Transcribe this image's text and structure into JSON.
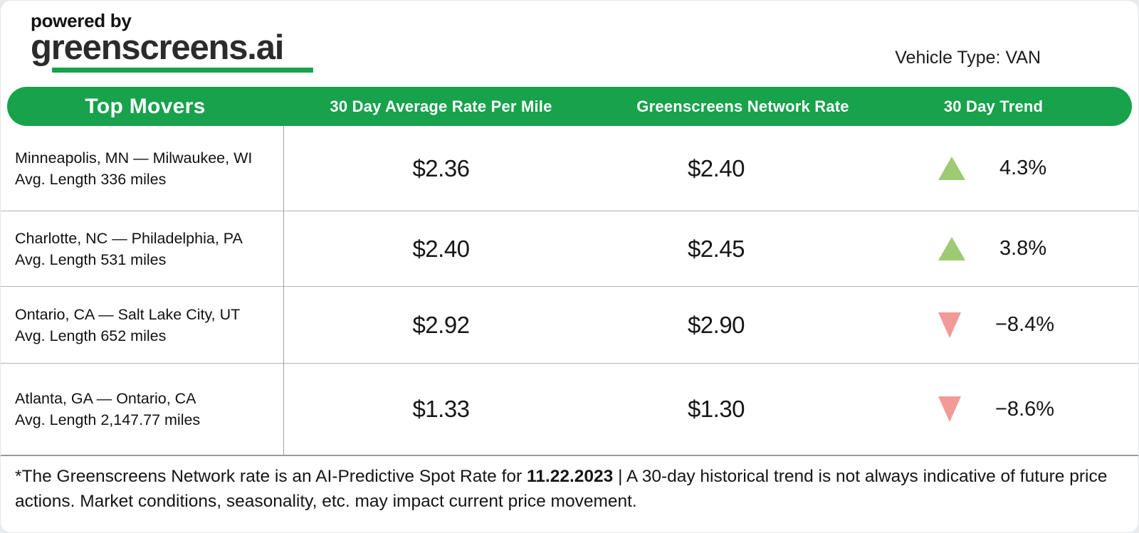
{
  "logo": {
    "powered_by": "powered by",
    "brand": "greenscreens.ai"
  },
  "vehicle_type": "Vehicle Type: VAN",
  "table": {
    "headers": [
      "Top Movers",
      "30 Day Average Rate Per Mile",
      "Greenscreens Network Rate",
      "30 Day Trend"
    ],
    "rows": [
      {
        "route": "Minneapolis, MN — Milwaukee, WI",
        "avg_length": "Avg. Length 336 miles",
        "avg_rate": "$2.36",
        "network_rate": "$2.40",
        "trend_direction": "up",
        "trend_value": "4.3%"
      },
      {
        "route": "Charlotte, NC — Philadelphia, PA",
        "avg_length": "Avg. Length 531 miles",
        "avg_rate": "$2.40",
        "network_rate": "$2.45",
        "trend_direction": "up",
        "trend_value": "3.8%"
      },
      {
        "route": "Ontario, CA — Salt Lake City, UT",
        "avg_length": "Avg. Length 652 miles",
        "avg_rate": "$2.92",
        "network_rate": "$2.90",
        "trend_direction": "down",
        "trend_value": "−8.4%"
      },
      {
        "route": "Atlanta, GA — Ontario, CA",
        "avg_length": "Avg. Length 2,147.77 miles",
        "avg_rate": "$1.33",
        "network_rate": "$1.30",
        "trend_direction": "down",
        "trend_value": "−8.6%"
      }
    ]
  },
  "footnote": {
    "prefix": "*The Greenscreens Network rate is an AI-Predictive Spot Rate for ",
    "date": "11.22.2023",
    "suffix": " | A 30-day historical trend is not always indicative of future price actions. Market conditions, seasonality, etc. may impact current price movement."
  },
  "colors": {
    "green": "#17a24b",
    "underline_green": "#1ca64f",
    "trend_up": "#9dca73",
    "trend_down": "#f29a98"
  },
  "chart_data": {
    "type": "table",
    "title": "Top Movers",
    "columns": [
      "Route",
      "Avg Length (miles)",
      "30 Day Average Rate Per Mile ($)",
      "Greenscreens Network Rate ($)",
      "30 Day Trend (%)"
    ],
    "rows": [
      [
        "Minneapolis, MN — Milwaukee, WI",
        336,
        2.36,
        2.4,
        4.3
      ],
      [
        "Charlotte, NC — Philadelphia, PA",
        531,
        2.4,
        2.45,
        3.8
      ],
      [
        "Ontario, CA — Salt Lake City, UT",
        652,
        2.92,
        2.9,
        -8.4
      ],
      [
        "Atlanta, GA — Ontario, CA",
        2147.77,
        1.33,
        1.3,
        -8.6
      ]
    ],
    "notes": "AI-Predictive Spot Rate for 11.22.2023; vehicle type VAN"
  }
}
